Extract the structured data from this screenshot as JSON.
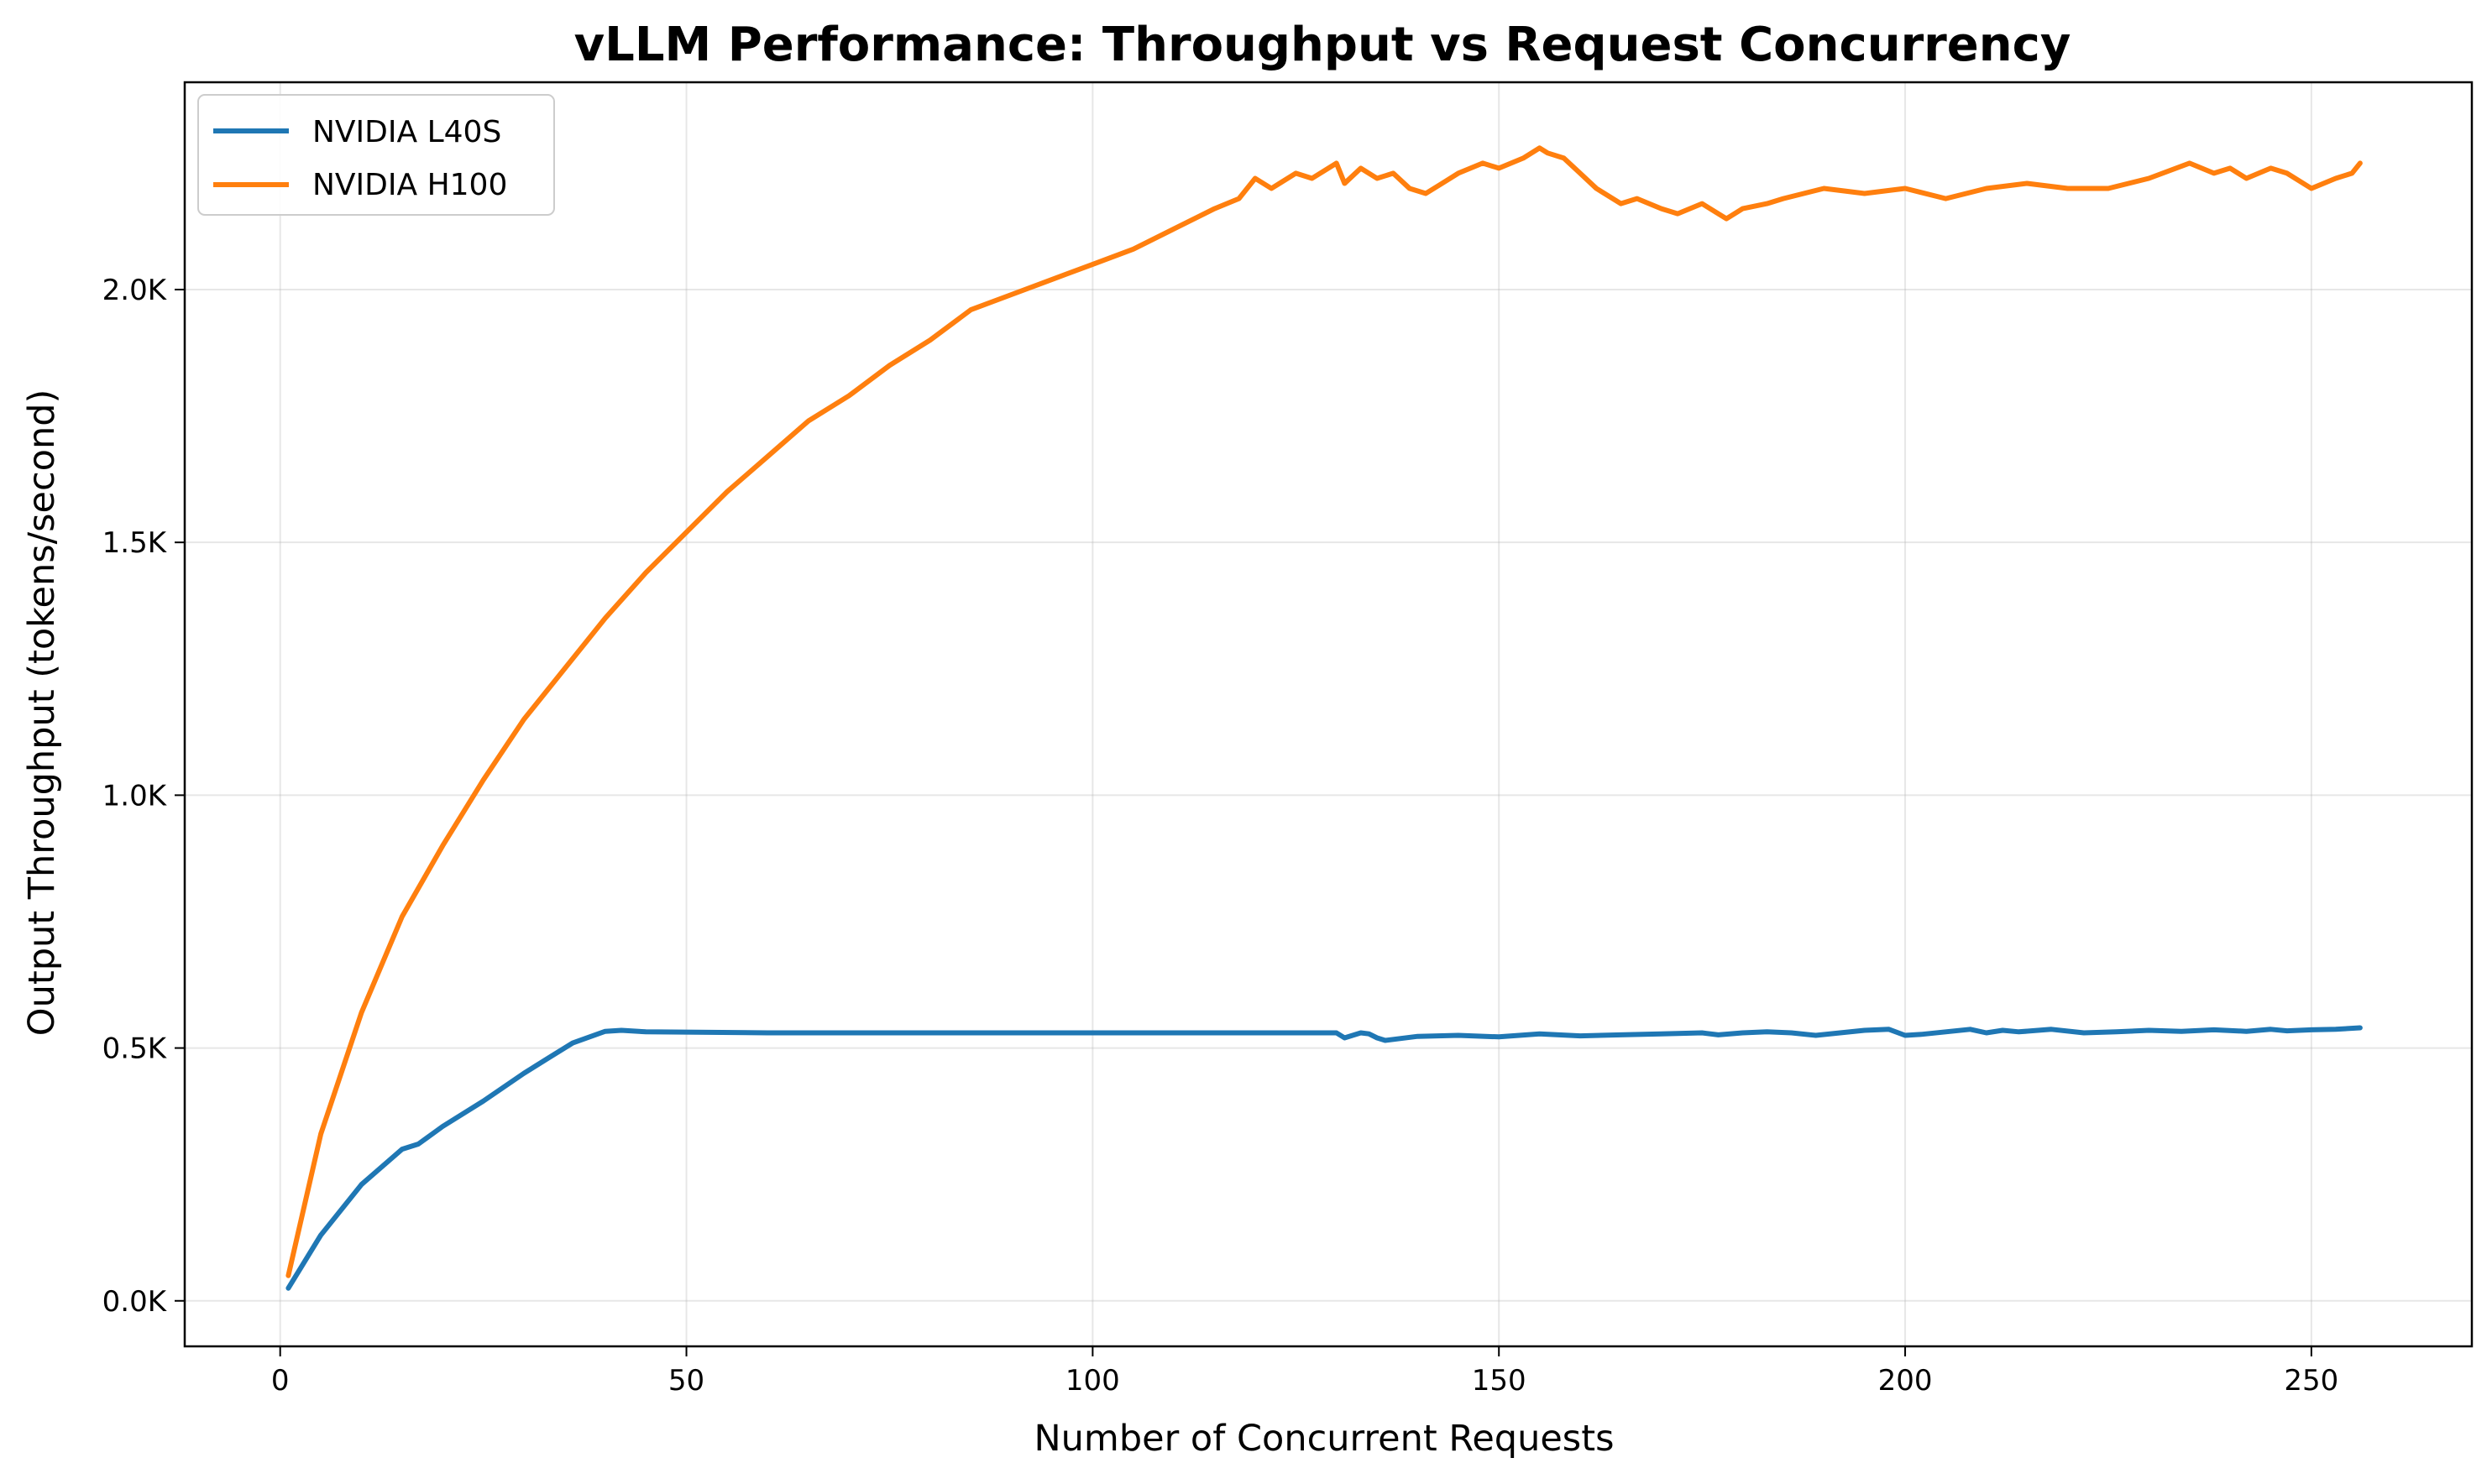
{
  "chart_data": {
    "type": "line",
    "title": "vLLM Performance: Throughput vs Request Concurrency",
    "xlabel": "Number of Concurrent Requests",
    "ylabel": "Output Throughput (tokens/second)",
    "xlim": [
      -11.75,
      269.75
    ],
    "ylim": [
      -90,
      2410
    ],
    "xticks": [
      0,
      50,
      100,
      150,
      200,
      250
    ],
    "xtick_labels": [
      "0",
      "50",
      "100",
      "150",
      "200",
      "250"
    ],
    "yticks": [
      0,
      500,
      1000,
      1500,
      2000
    ],
    "ytick_labels": [
      "0.0K",
      "0.5K",
      "1.0K",
      "1.5K",
      "2.0K"
    ],
    "grid": true,
    "legend_position": "top-left",
    "series": [
      {
        "name": "NVIDIA L40S",
        "color": "#1f77b4",
        "x": [
          1,
          5,
          10,
          15,
          17,
          20,
          25,
          30,
          33,
          36,
          40,
          42,
          45,
          60,
          80,
          100,
          120,
          130,
          131,
          132,
          133,
          134,
          135,
          136,
          140,
          145,
          150,
          155,
          160,
          165,
          170,
          175,
          177,
          180,
          183,
          186,
          189,
          192,
          195,
          198,
          200,
          202,
          205,
          208,
          210,
          212,
          214,
          218,
          222,
          226,
          230,
          234,
          238,
          242,
          245,
          247,
          250,
          253,
          256
        ],
        "y": [
          25,
          130,
          230,
          300,
          310,
          345,
          395,
          450,
          480,
          510,
          533,
          535,
          532,
          530,
          530,
          530,
          530,
          530,
          520,
          525,
          530,
          528,
          520,
          515,
          523,
          525,
          522,
          528,
          524,
          526,
          528,
          530,
          526,
          530,
          532,
          530,
          525,
          530,
          535,
          537,
          525,
          527,
          532,
          537,
          530,
          535,
          532,
          537,
          530,
          532,
          535,
          533,
          536,
          533,
          537,
          534,
          536,
          537,
          540
        ]
      },
      {
        "name": "NVIDIA H100",
        "color": "#ff7f0e",
        "x": [
          1,
          5,
          10,
          15,
          20,
          25,
          30,
          35,
          40,
          45,
          50,
          55,
          60,
          65,
          70,
          75,
          80,
          85,
          90,
          95,
          100,
          105,
          110,
          115,
          118,
          120,
          122,
          125,
          127,
          130,
          131,
          133,
          135,
          137,
          139,
          141,
          143,
          145,
          148,
          150,
          153,
          155,
          156,
          158,
          160,
          162,
          165,
          167,
          170,
          172,
          175,
          178,
          180,
          183,
          185,
          190,
          195,
          200,
          205,
          210,
          215,
          220,
          225,
          230,
          235,
          238,
          240,
          242,
          245,
          247,
          250,
          253,
          255,
          256
        ],
        "y": [
          50,
          330,
          570,
          760,
          900,
          1030,
          1150,
          1250,
          1350,
          1440,
          1520,
          1600,
          1670,
          1740,
          1790,
          1850,
          1900,
          1960,
          1990,
          2020,
          2050,
          2080,
          2120,
          2160,
          2180,
          2220,
          2200,
          2230,
          2220,
          2250,
          2210,
          2240,
          2220,
          2230,
          2200,
          2190,
          2210,
          2230,
          2250,
          2240,
          2260,
          2280,
          2270,
          2260,
          2230,
          2200,
          2170,
          2180,
          2160,
          2150,
          2170,
          2140,
          2160,
          2170,
          2180,
          2200,
          2190,
          2200,
          2180,
          2200,
          2210,
          2200,
          2200,
          2220,
          2250,
          2230,
          2240,
          2220,
          2240,
          2230,
          2200,
          2220,
          2230,
          2250
        ]
      }
    ]
  }
}
